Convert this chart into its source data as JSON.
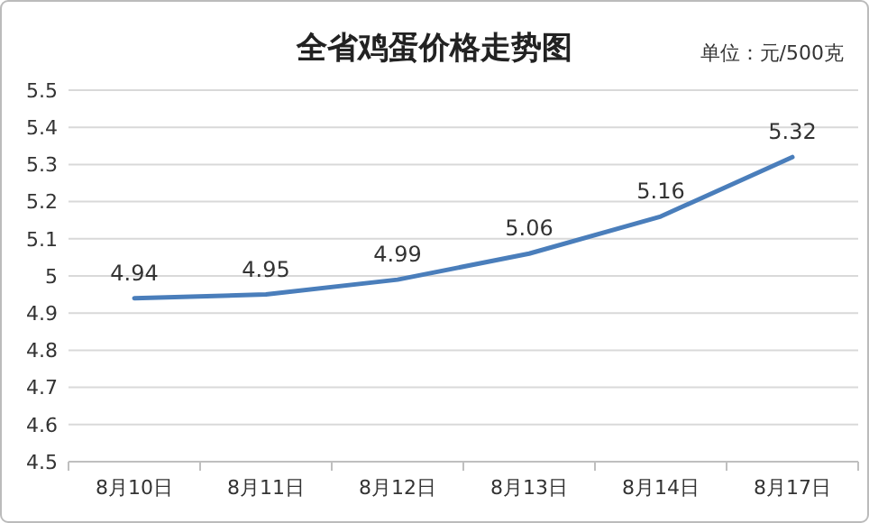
{
  "chart_data": {
    "type": "line",
    "title": "全省鸡蛋价格走势图",
    "annotations": [
      "单位：元/500克"
    ],
    "categories": [
      "8月10日",
      "8月11日",
      "8月12日",
      "8月13日",
      "8月14日",
      "8月17日"
    ],
    "series": [
      {
        "color": "#4a7ebb",
        "values": [
          4.94,
          4.95,
          4.99,
          5.06,
          5.16,
          5.32
        ]
      }
    ],
    "ylim": [
      4.5,
      5.5
    ],
    "yticks": [
      4.5,
      4.6,
      4.7,
      4.8,
      4.9,
      5,
      5.1,
      5.2,
      5.3,
      5.4,
      5.5
    ],
    "grid": "y",
    "data_labels": true,
    "marker": "none",
    "line_style": "solid"
  }
}
